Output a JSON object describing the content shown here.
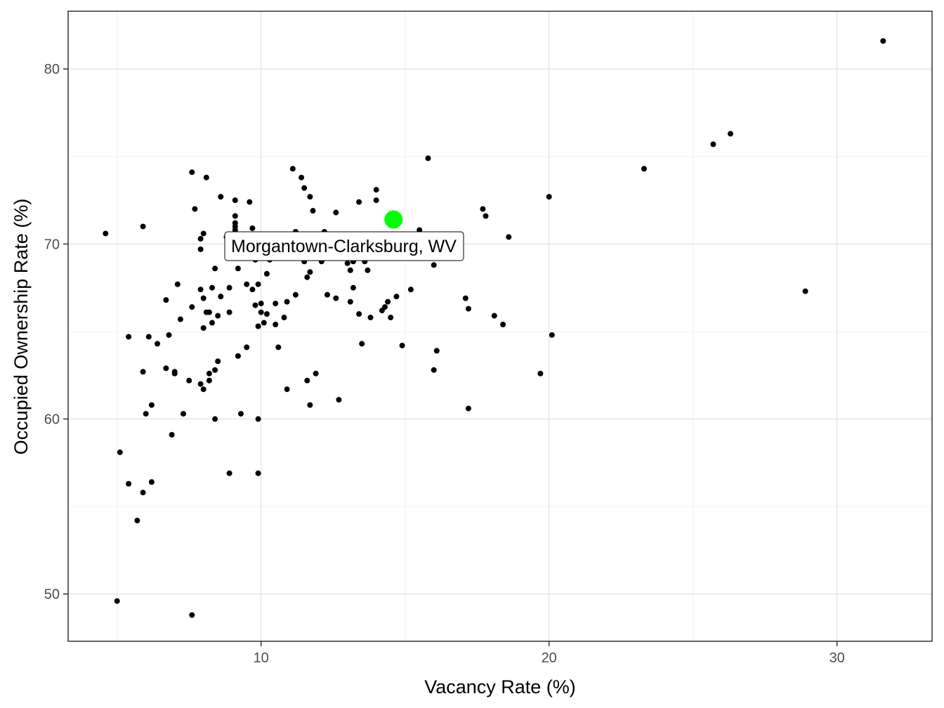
{
  "chart_data": {
    "type": "scatter",
    "title": "",
    "xlabel": "Vacancy Rate (%)",
    "ylabel": "Occupied Ownership Rate (%)",
    "xlim": [
      3.3,
      33.3
    ],
    "ylim": [
      47.3,
      83.3
    ],
    "x_ticks": [
      10,
      20,
      30
    ],
    "y_ticks": [
      50,
      60,
      70,
      80
    ],
    "x_tick_labels": [
      "10",
      "20",
      "30"
    ],
    "y_tick_labels": [
      "50",
      "60",
      "70",
      "80"
    ],
    "grid": true,
    "point_color": "#000000",
    "highlight": {
      "label": "Morgantown-Clarksburg, WV",
      "x": 14.6,
      "y": 71.4,
      "color": "#00ff00"
    },
    "points": [
      [
        4.6,
        70.6
      ],
      [
        5.0,
        49.6
      ],
      [
        5.1,
        58.1
      ],
      [
        5.4,
        56.3
      ],
      [
        5.4,
        64.7
      ],
      [
        5.7,
        54.2
      ],
      [
        5.9,
        71.0
      ],
      [
        5.9,
        62.7
      ],
      [
        5.9,
        55.8
      ],
      [
        6.0,
        60.3
      ],
      [
        6.1,
        64.7
      ],
      [
        6.2,
        60.8
      ],
      [
        6.2,
        56.4
      ],
      [
        6.4,
        64.3
      ],
      [
        6.7,
        66.8
      ],
      [
        6.7,
        62.9
      ],
      [
        6.8,
        64.8
      ],
      [
        6.9,
        59.1
      ],
      [
        7.0,
        62.6
      ],
      [
        7.0,
        62.7
      ],
      [
        7.1,
        67.7
      ],
      [
        7.2,
        65.7
      ],
      [
        7.3,
        60.3
      ],
      [
        7.5,
        62.2
      ],
      [
        7.6,
        74.1
      ],
      [
        7.6,
        66.4
      ],
      [
        7.6,
        48.8
      ],
      [
        7.7,
        72.0
      ],
      [
        7.9,
        69.7
      ],
      [
        7.9,
        70.3
      ],
      [
        7.9,
        67.4
      ],
      [
        7.9,
        62.0
      ],
      [
        8.0,
        70.6
      ],
      [
        8.0,
        66.9
      ],
      [
        8.0,
        65.2
      ],
      [
        8.0,
        61.7
      ],
      [
        8.1,
        73.8
      ],
      [
        8.1,
        66.1
      ],
      [
        8.2,
        66.1
      ],
      [
        8.2,
        62.6
      ],
      [
        8.2,
        62.2
      ],
      [
        8.3,
        65.5
      ],
      [
        8.3,
        67.5
      ],
      [
        8.4,
        68.6
      ],
      [
        8.4,
        60.0
      ],
      [
        8.4,
        62.8
      ],
      [
        8.5,
        65.9
      ],
      [
        8.5,
        63.3
      ],
      [
        8.6,
        67.0
      ],
      [
        8.6,
        72.7
      ],
      [
        8.8,
        70.4
      ],
      [
        8.9,
        67.5
      ],
      [
        8.9,
        66.1
      ],
      [
        8.9,
        56.9
      ],
      [
        9.1,
        72.5
      ],
      [
        9.1,
        71.6
      ],
      [
        9.1,
        71.2
      ],
      [
        9.1,
        70.8
      ],
      [
        9.1,
        71.0
      ],
      [
        9.2,
        68.6
      ],
      [
        9.2,
        63.6
      ],
      [
        9.3,
        60.3
      ],
      [
        9.5,
        67.7
      ],
      [
        9.5,
        64.1
      ],
      [
        9.6,
        72.4
      ],
      [
        9.7,
        70.9
      ],
      [
        9.7,
        67.4
      ],
      [
        9.8,
        69.1
      ],
      [
        9.8,
        66.5
      ],
      [
        9.9,
        67.7
      ],
      [
        9.9,
        65.3
      ],
      [
        9.9,
        60.0
      ],
      [
        9.9,
        56.9
      ],
      [
        10.0,
        66.1
      ],
      [
        10.0,
        66.6
      ],
      [
        10.1,
        65.5
      ],
      [
        10.2,
        66.0
      ],
      [
        10.2,
        68.3
      ],
      [
        10.3,
        69.1
      ],
      [
        10.5,
        66.6
      ],
      [
        10.5,
        65.4
      ],
      [
        10.6,
        64.1
      ],
      [
        10.8,
        65.8
      ],
      [
        10.9,
        66.7
      ],
      [
        10.9,
        61.7
      ],
      [
        11.1,
        74.3
      ],
      [
        11.2,
        70.7
      ],
      [
        11.2,
        67.1
      ],
      [
        11.4,
        73.8
      ],
      [
        11.5,
        73.2
      ],
      [
        11.5,
        69.0
      ],
      [
        11.6,
        68.1
      ],
      [
        11.6,
        62.2
      ],
      [
        11.7,
        72.7
      ],
      [
        11.7,
        68.4
      ],
      [
        11.7,
        60.8
      ],
      [
        11.8,
        71.9
      ],
      [
        11.9,
        62.6
      ],
      [
        12.1,
        69.0
      ],
      [
        12.2,
        70.7
      ],
      [
        12.3,
        67.1
      ],
      [
        12.5,
        69.5
      ],
      [
        12.6,
        66.9
      ],
      [
        12.6,
        71.8
      ],
      [
        12.7,
        61.1
      ],
      [
        12.9,
        69.3
      ],
      [
        13.0,
        68.9
      ],
      [
        13.1,
        68.5
      ],
      [
        13.1,
        66.7
      ],
      [
        13.2,
        67.5
      ],
      [
        13.2,
        69.0
      ],
      [
        13.4,
        66.0
      ],
      [
        13.4,
        72.4
      ],
      [
        13.5,
        64.3
      ],
      [
        13.6,
        69.0
      ],
      [
        13.7,
        68.5
      ],
      [
        13.8,
        65.8
      ],
      [
        14.0,
        73.1
      ],
      [
        14.0,
        72.5
      ],
      [
        14.2,
        66.2
      ],
      [
        14.3,
        66.4
      ],
      [
        14.4,
        66.7
      ],
      [
        14.5,
        65.8
      ],
      [
        14.7,
        67.0
      ],
      [
        14.9,
        64.2
      ],
      [
        15.2,
        67.4
      ],
      [
        15.5,
        70.8
      ],
      [
        15.8,
        74.9
      ],
      [
        16.0,
        68.8
      ],
      [
        16.0,
        62.8
      ],
      [
        16.1,
        63.9
      ],
      [
        17.1,
        66.9
      ],
      [
        17.2,
        66.3
      ],
      [
        17.2,
        60.6
      ],
      [
        17.7,
        72.0
      ],
      [
        17.8,
        71.6
      ],
      [
        18.1,
        65.9
      ],
      [
        18.4,
        65.4
      ],
      [
        18.6,
        70.4
      ],
      [
        19.7,
        62.6
      ],
      [
        20.0,
        72.7
      ],
      [
        20.1,
        64.8
      ],
      [
        23.3,
        74.3
      ],
      [
        25.7,
        75.7
      ],
      [
        26.3,
        76.3
      ],
      [
        28.9,
        67.3
      ],
      [
        31.6,
        81.6
      ]
    ]
  }
}
